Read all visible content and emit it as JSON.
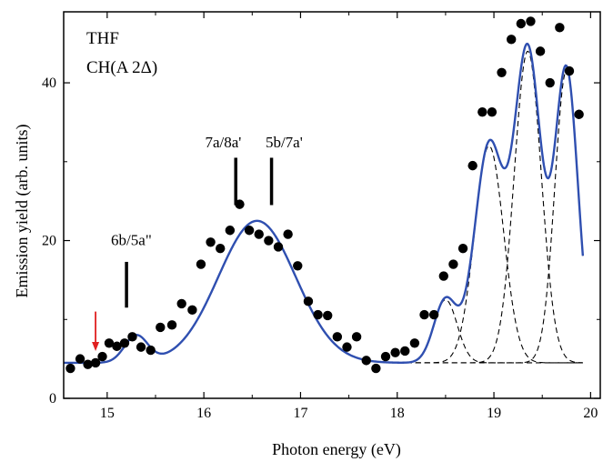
{
  "chart_data": {
    "type": "scatter",
    "xlabel": "Photon energy (eV)",
    "ylabel": "Emission yield (arb. units)",
    "xlim": [
      14.55,
      20.1
    ],
    "ylim": [
      0,
      49
    ],
    "xticks": [
      15,
      16,
      17,
      18,
      19,
      20
    ],
    "yticks": [
      0,
      20,
      40
    ],
    "grid": false,
    "legend_text": [
      "THF",
      "CH(A 2Δ)"
    ],
    "legend_position": "top-left",
    "colors": {
      "fit_curve": "#2f4fb0",
      "points": "#000000",
      "arrow": "#e02020",
      "components": "#000000"
    },
    "series": [
      {
        "kind": "points",
        "x": [
          14.62,
          14.72,
          14.8,
          14.88,
          14.95,
          15.02,
          15.1,
          15.18,
          15.26,
          15.35,
          15.45,
          15.55,
          15.67,
          15.77,
          15.88,
          15.97,
          16.07,
          16.17,
          16.27,
          16.37,
          16.47,
          16.57,
          16.67,
          16.77,
          16.87,
          16.97,
          17.08,
          17.18,
          17.28,
          17.38,
          17.48,
          17.58,
          17.68,
          17.78,
          17.88,
          17.98,
          18.08,
          18.18,
          18.28,
          18.38,
          18.48,
          18.58,
          18.68,
          18.78,
          18.88,
          18.98,
          19.08,
          19.18,
          19.28,
          19.38,
          19.48,
          19.58,
          19.68,
          19.78,
          19.88
        ],
        "y": [
          3.8,
          5.0,
          4.3,
          4.5,
          5.3,
          7.0,
          6.6,
          7.0,
          7.8,
          6.5,
          6.1,
          9.0,
          9.3,
          12.0,
          11.2,
          17.0,
          19.8,
          19.0,
          21.3,
          24.6,
          21.3,
          20.8,
          20.0,
          19.2,
          20.8,
          16.8,
          12.3,
          10.6,
          10.5,
          7.8,
          6.5,
          7.8,
          4.8,
          3.8,
          5.3,
          5.8,
          6.0,
          7.0,
          10.6,
          10.6,
          15.5,
          17.0,
          19.0,
          29.5,
          36.3,
          36.3,
          41.3,
          45.5,
          47.5,
          47.8,
          44.0,
          40.0,
          47.0,
          41.5,
          36.0
        ]
      },
      {
        "kind": "fit",
        "baseline": 4.5,
        "gaussians": [
          {
            "center": 15.3,
            "sigma": 0.12,
            "amplitude": 3.4
          },
          {
            "center": 16.55,
            "sigma": 0.4,
            "amplitude": 18.0
          },
          {
            "center": 18.5,
            "sigma": 0.12,
            "amplitude": 8.0
          },
          {
            "center": 18.95,
            "sigma": 0.15,
            "amplitude": 27.5
          },
          {
            "center": 19.35,
            "sigma": 0.14,
            "amplitude": 39.5
          },
          {
            "center": 19.75,
            "sigma": 0.12,
            "amplitude": 37.0
          }
        ],
        "x_range": [
          14.55,
          19.92
        ]
      },
      {
        "kind": "components",
        "baseline": 4.5,
        "x_range": [
          18.0,
          19.92
        ],
        "gaussians": [
          {
            "center": 18.5,
            "sigma": 0.12,
            "amplitude": 8.0
          },
          {
            "center": 18.95,
            "sigma": 0.15,
            "amplitude": 27.5
          },
          {
            "center": 19.35,
            "sigma": 0.14,
            "amplitude": 39.5
          },
          {
            "center": 19.75,
            "sigma": 0.12,
            "amplitude": 37.0
          }
        ]
      }
    ],
    "annotations": [
      {
        "text": "6b/5a\"",
        "bar_x": 15.2,
        "bar_y": [
          11.5,
          17.3
        ],
        "label_x": 15.25,
        "label_y": 19.4
      },
      {
        "text": "7a/8a'",
        "bar_x": 16.33,
        "bar_y": [
          24.5,
          30.5
        ],
        "label_x": 16.2,
        "label_y": 31.8
      },
      {
        "text": "5b/7a'",
        "bar_x": 16.7,
        "bar_y": [
          24.5,
          30.5
        ],
        "label_x": 16.83,
        "label_y": 31.8
      }
    ],
    "arrow": {
      "x": 14.88,
      "y_from": 11.0,
      "y_to": 6.0
    }
  }
}
